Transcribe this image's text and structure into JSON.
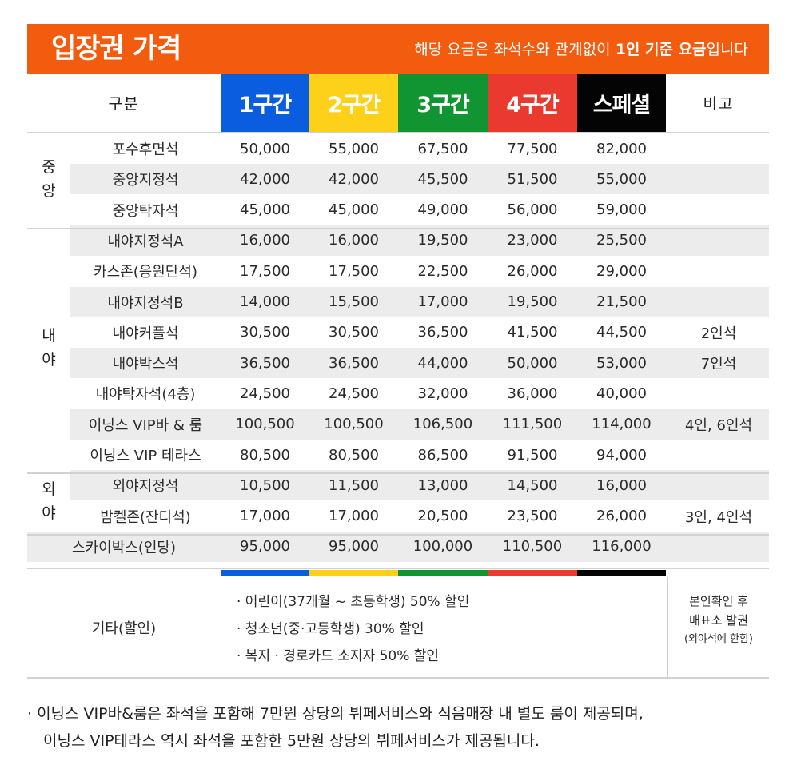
{
  "header": {
    "title": "입장권 가격",
    "note_pre": "해당 요금은 좌석수와 관계없이 ",
    "note_bold": "1인 기준 요금",
    "note_post": "입니다"
  },
  "columns": {
    "category": "구분",
    "zones": [
      "1구간",
      "2구간",
      "3구간",
      "4구간",
      "스페셜"
    ],
    "remarks": "비고"
  },
  "zone_colors": [
    "#0b5de0",
    "#fdd01a",
    "#119533",
    "#ea3a2f",
    "#040404"
  ],
  "groups": [
    {
      "label": "중앙"
    },
    {
      "label": "내야"
    },
    {
      "label": "외야"
    }
  ],
  "rows": [
    {
      "name": "포수후면석",
      "prices": [
        "50,000",
        "55,000",
        "67,500",
        "77,500",
        "82,000"
      ],
      "remark": ""
    },
    {
      "name": "중앙지정석",
      "prices": [
        "42,000",
        "42,000",
        "45,500",
        "51,500",
        "55,000"
      ],
      "remark": ""
    },
    {
      "name": "중앙탁자석",
      "prices": [
        "45,000",
        "45,000",
        "49,000",
        "56,000",
        "59,000"
      ],
      "remark": ""
    },
    {
      "name": "내야지정석A",
      "prices": [
        "16,000",
        "16,000",
        "19,500",
        "23,000",
        "25,500"
      ],
      "remark": ""
    },
    {
      "name": "카스존(응원단석)",
      "prices": [
        "17,500",
        "17,500",
        "22,500",
        "26,000",
        "29,000"
      ],
      "remark": ""
    },
    {
      "name": "내야지정석B",
      "prices": [
        "14,000",
        "15,500",
        "17,000",
        "19,500",
        "21,500"
      ],
      "remark": ""
    },
    {
      "name": "내야커플석",
      "prices": [
        "30,500",
        "30,500",
        "36,500",
        "41,500",
        "44,500"
      ],
      "remark": "2인석"
    },
    {
      "name": "내야박스석",
      "prices": [
        "36,500",
        "36,500",
        "44,000",
        "50,000",
        "53,000"
      ],
      "remark": "7인석"
    },
    {
      "name": "내야탁자석(4층)",
      "prices": [
        "24,500",
        "24,500",
        "32,000",
        "36,000",
        "40,000"
      ],
      "remark": ""
    },
    {
      "name": "이닝스 VIP바 & 룸",
      "prices": [
        "100,500",
        "100,500",
        "106,500",
        "111,500",
        "114,000"
      ],
      "remark": "4인, 6인석"
    },
    {
      "name": "이닝스 VIP 테라스",
      "prices": [
        "80,500",
        "80,500",
        "86,500",
        "91,500",
        "94,000"
      ],
      "remark": ""
    },
    {
      "name": "외야지정석",
      "prices": [
        "10,500",
        "11,500",
        "13,000",
        "14,500",
        "16,000"
      ],
      "remark": ""
    },
    {
      "name": "밤켈존(잔디석)",
      "prices": [
        "17,000",
        "17,000",
        "20,500",
        "23,500",
        "26,000"
      ],
      "remark": "3인, 4인석"
    },
    {
      "name": "스카이박스(인당)",
      "prices": [
        "95,000",
        "95,000",
        "100,000",
        "110,500",
        "116,000"
      ],
      "remark": ""
    }
  ],
  "misc": {
    "label": "기타(할인)",
    "items": [
      "· 어린이(37개월 ~ 초등학생) 50% 할인",
      "· 청소년(중·고등학생) 30% 할인",
      "· 복지 · 경로카드 소지자 50% 할인"
    ],
    "note_line1": "본인확인 후",
    "note_line2": "매표소 발권",
    "note_line3": "(외야석에 한함)"
  },
  "footnote": {
    "line1": "· 이닝스 VIP바&룸은 좌석을 포함해 7만원 상당의 뷔페서비스와 식음매장 내 별도 룸이 제공되며,",
    "line2": "이닝스 VIP테라스 역시 좌석을 포함한 5만원 상당의 뷔페서비스가 제공됩니다."
  }
}
